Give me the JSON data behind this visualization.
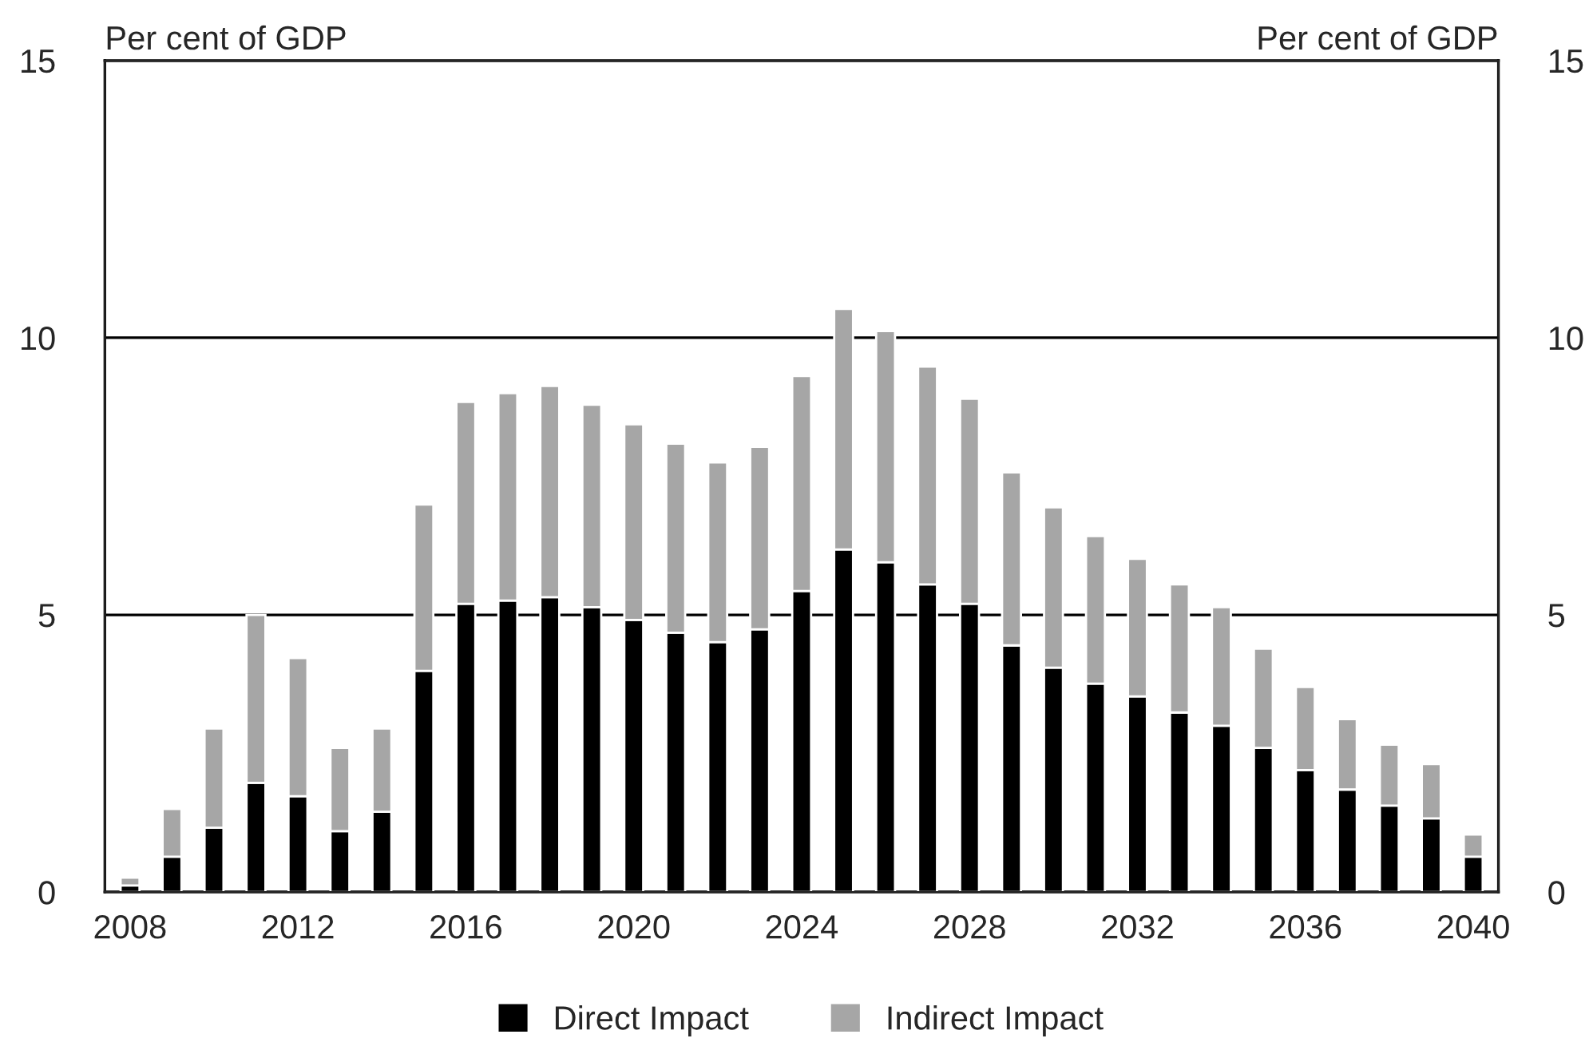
{
  "chart_data": {
    "type": "bar",
    "stacked": true,
    "ylabel": "Per cent of GDP",
    "y2label": "Per cent of GDP",
    "categories": [
      "2008",
      null,
      null,
      null,
      "2012",
      null,
      null,
      null,
      "2016",
      null,
      null,
      null,
      "2020",
      null,
      null,
      null,
      "2024",
      null,
      null,
      null,
      "2028",
      null,
      null,
      null,
      "2032",
      null,
      null,
      null,
      "2036",
      null,
      null,
      null,
      "2040"
    ],
    "series": [
      {
        "name": "Direct Impact",
        "color": "#000000",
        "values": [
          0.12,
          0.64,
          1.16,
          1.97,
          1.73,
          1.1,
          1.45,
          3.99,
          5.2,
          5.26,
          5.32,
          5.14,
          4.91,
          4.68,
          4.51,
          4.74,
          5.43,
          6.18,
          5.95,
          5.55,
          5.2,
          4.45,
          4.05,
          3.76,
          3.53,
          3.24,
          3.0,
          2.6,
          2.2,
          1.85,
          1.56,
          1.33,
          0.64
        ]
      },
      {
        "name": "Indirect Impact",
        "color": "#a6a6a6",
        "values": [
          0.14,
          0.86,
          1.79,
          3.03,
          2.49,
          1.5,
          1.5,
          3.0,
          3.64,
          3.74,
          3.81,
          3.65,
          3.53,
          3.41,
          3.24,
          3.29,
          3.88,
          4.34,
          4.17,
          3.93,
          3.7,
          3.12,
          2.89,
          2.66,
          2.48,
          2.31,
          2.14,
          1.79,
          1.5,
          1.27,
          1.1,
          0.98,
          0.4
        ]
      }
    ],
    "ylim": [
      0,
      15
    ],
    "yticks": [
      0,
      5,
      10,
      15
    ],
    "y2lim": [
      0,
      15
    ],
    "y2ticks": [
      0,
      5,
      10,
      15
    ],
    "grid": "y",
    "legend": "bottom"
  }
}
